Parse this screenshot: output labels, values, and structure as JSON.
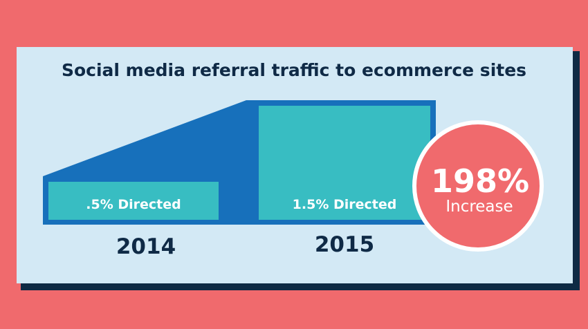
{
  "chart_data": {
    "type": "bar",
    "title": "Social media referral traffic to ecommerce sites",
    "categories": [
      "2014",
      "2015"
    ],
    "values": [
      0.5,
      1.5
    ],
    "unit": "%",
    "data_labels": [
      ".5% Directed",
      "1.5% Directed"
    ],
    "annotation": {
      "value": "198%",
      "caption": "Increase"
    }
  },
  "colors": {
    "page_background": "#F06A6D",
    "panel_background": "#D3E9F5",
    "dark_blue": "#1770BB",
    "teal": "#38BDC2",
    "title_text": "#0F2A46",
    "badge_fill": "#F06A6D"
  }
}
